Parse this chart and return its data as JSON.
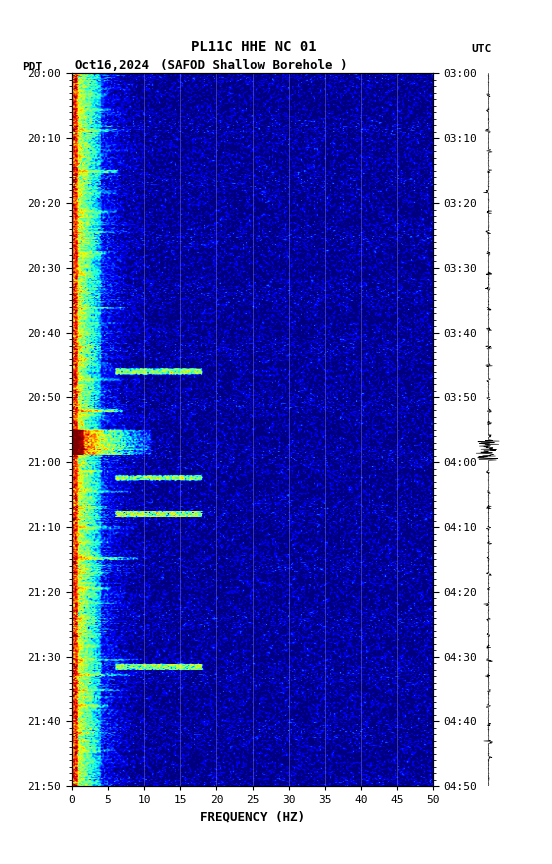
{
  "title_line1": "PL11C HHE NC 01",
  "title_line2_center": "(SAFOD Shallow Borehole )",
  "title_line2_date": "Oct16,2024",
  "xlabel": "FREQUENCY (HZ)",
  "freq_min": 0,
  "freq_max": 50,
  "yticks_pdt": [
    "20:00",
    "20:10",
    "20:20",
    "20:30",
    "20:40",
    "20:50",
    "21:00",
    "21:10",
    "21:20",
    "21:30",
    "21:40",
    "21:50"
  ],
  "yticks_utc": [
    "03:00",
    "03:10",
    "03:20",
    "03:30",
    "03:40",
    "03:50",
    "04:00",
    "04:10",
    "04:20",
    "04:30",
    "04:40",
    "04:50"
  ],
  "grid_freq_lines": [
    10,
    15,
    20,
    25,
    30,
    35,
    40,
    45
  ],
  "xticks": [
    0,
    5,
    10,
    15,
    20,
    25,
    30,
    35,
    40,
    45,
    50
  ],
  "background_color": "#ffffff",
  "fig_width": 5.52,
  "fig_height": 8.64,
  "dpi": 100
}
